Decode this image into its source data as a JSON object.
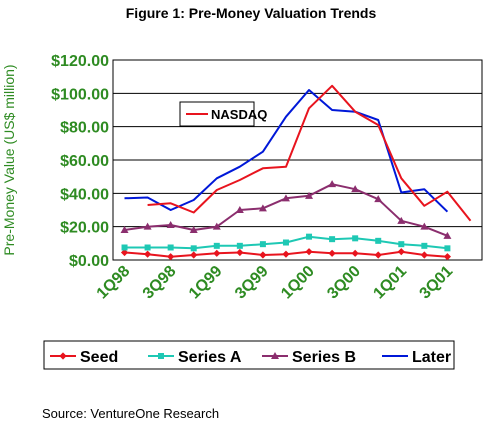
{
  "chart_data": {
    "type": "line",
    "title": "Figure 1: Pre-Money Valuation Trends",
    "ylabel": "Pre-Money Value (US$ million)",
    "ylim": [
      0,
      120
    ],
    "yticks": [
      "$0.00",
      "$20.00",
      "$40.00",
      "$60.00",
      "$80.00",
      "$100.00",
      "$120.00"
    ],
    "xtick_labels": [
      "1Q98",
      "3Q98",
      "1Q99",
      "3Q99",
      "1Q00",
      "3Q00",
      "1Q01",
      "3Q01"
    ],
    "x_points": [
      "1Q98",
      "2Q98",
      "3Q98",
      "4Q98",
      "1Q99",
      "2Q99",
      "3Q99",
      "4Q99",
      "1Q00",
      "2Q00",
      "3Q00",
      "4Q00",
      "1Q01",
      "2Q01",
      "3Q01",
      "4Q01"
    ],
    "grid": true,
    "legend_position": "bottom",
    "series": [
      {
        "name": "Seed",
        "color": "#e8141e",
        "marker": "diamond",
        "values": [
          4.5,
          3.5,
          2,
          3,
          4,
          4.5,
          3,
          3.5,
          5,
          4,
          4,
          3,
          5,
          3,
          2,
          null
        ]
      },
      {
        "name": "Series A",
        "color": "#1ec8b4",
        "marker": "square",
        "values": [
          7.5,
          7.5,
          7.5,
          7,
          8.5,
          8.5,
          9.5,
          10.5,
          14,
          12.5,
          13,
          11.5,
          9.5,
          8.5,
          7,
          null
        ]
      },
      {
        "name": "Series B",
        "color": "#8b2e6e",
        "marker": "triangle",
        "values": [
          18,
          20,
          21,
          18,
          20,
          30,
          31,
          37,
          38.5,
          45.5,
          42.5,
          36.5,
          23.5,
          20,
          14.5,
          null
        ]
      },
      {
        "name": "Later",
        "color": "#0018d8",
        "marker": "none",
        "values": [
          37,
          37.5,
          30,
          36,
          49,
          56,
          65,
          86,
          102,
          90,
          89,
          84,
          40.5,
          42.5,
          29,
          null
        ]
      },
      {
        "name": "NASDAQ",
        "color": "#e8141e",
        "marker": "none",
        "values": [
          null,
          33,
          34,
          28.5,
          42,
          48,
          55,
          56,
          91,
          104.5,
          89,
          81,
          49,
          32.5,
          41,
          23.5
        ]
      }
    ],
    "annotation": "NASDAQ"
  },
  "source": "Source:  VentureOne Research"
}
